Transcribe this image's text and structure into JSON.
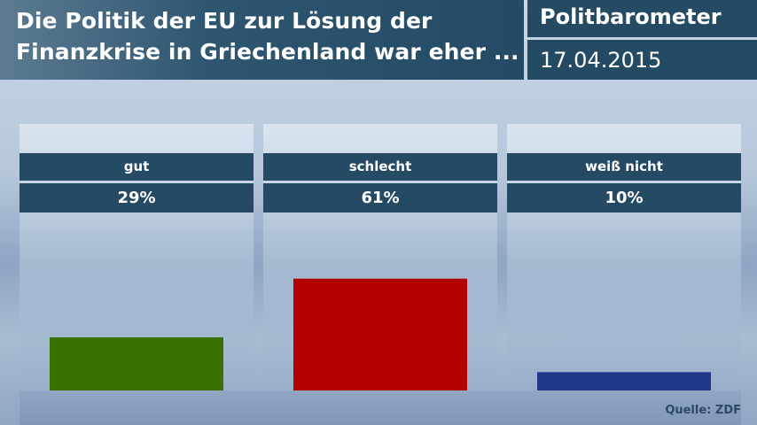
{
  "header": {
    "title_line1": "Die Politik der EU zur Lösung der",
    "title_line2": "Finanzkrise in Griechenland war eher ...",
    "brand": "Politbarometer",
    "date": "17.04.2015"
  },
  "chart_data": {
    "type": "bar",
    "title": "Die Politik der EU zur Lösung der Finanzkrise in Griechenland war eher ...",
    "categories": [
      "gut",
      "schlecht",
      "weiß nicht"
    ],
    "values": [
      29,
      61,
      10
    ],
    "labels": [
      "29%",
      "61%",
      "10%"
    ],
    "colors": [
      "#3a7200",
      "#b30000",
      "#22388c"
    ],
    "unit": "%",
    "ylim": [
      0,
      100
    ]
  },
  "source": "Quelle: ZDF"
}
